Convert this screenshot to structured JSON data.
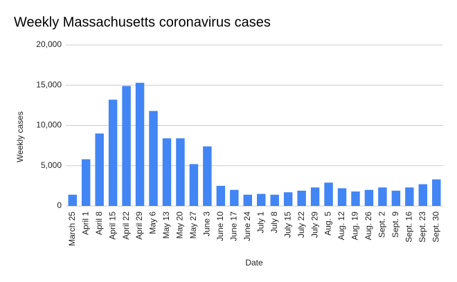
{
  "chart_data": {
    "type": "bar",
    "title": "Weekly Massachusetts coronavirus cases",
    "xlabel": "Date",
    "ylabel": "Weekly cases",
    "categories": [
      "March 25",
      "April 1",
      "April 8",
      "April 15",
      "April 22",
      "April 29",
      "May 6",
      "May 13",
      "May 20",
      "May 27",
      "June 3",
      "June 10",
      "June 17",
      "June 24",
      "July 1",
      "July 8",
      "July 15",
      "July 22",
      "July 29",
      "Aug. 5",
      "Aug. 12",
      "Aug. 19",
      "Aug. 26",
      "Sept. 2",
      "Sept. 9",
      "Sept. 16",
      "Sept. 23",
      "Sept. 30"
    ],
    "values": [
      1400,
      5800,
      9000,
      13200,
      14900,
      15300,
      11800,
      8400,
      8400,
      5200,
      7400,
      2500,
      2000,
      1400,
      1500,
      1400,
      1700,
      1900,
      2300,
      2900,
      2200,
      1800,
      2000,
      2300,
      1900,
      2300,
      2700,
      3300
    ],
    "color": "#4285f4",
    "ylim": [
      0,
      20000
    ],
    "yticks": [
      0,
      {
        "value": 5000,
        "label": "5,000"
      },
      {
        "value": 10000,
        "label": "10,000"
      },
      {
        "value": 15000,
        "label": "15,000"
      },
      {
        "value": 20000,
        "label": "20,000"
      }
    ],
    "grid": true
  }
}
